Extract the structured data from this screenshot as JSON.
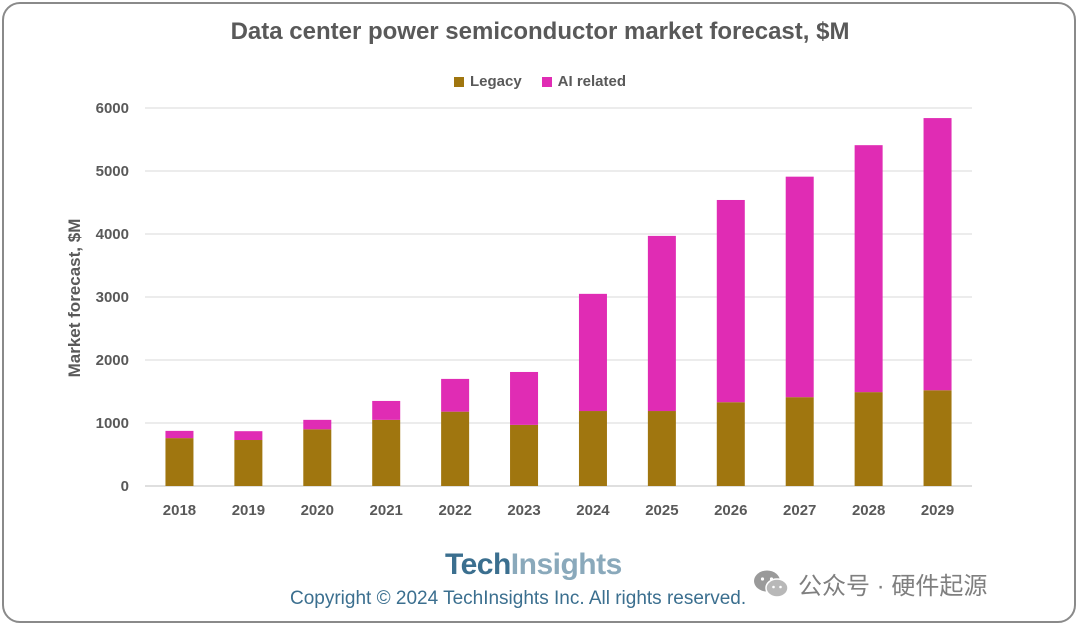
{
  "chart_data": {
    "type": "bar",
    "stacked": true,
    "title": "Data center power semiconductor market forecast, $M",
    "xlabel": "",
    "ylabel": "Market forecast, $M",
    "ylim": [
      0,
      6000
    ],
    "yticks": [
      0,
      1000,
      2000,
      3000,
      4000,
      5000,
      6000
    ],
    "grid": true,
    "legend_position": "top-center",
    "categories": [
      "2018",
      "2019",
      "2020",
      "2021",
      "2022",
      "2023",
      "2024",
      "2025",
      "2026",
      "2027",
      "2028",
      "2029"
    ],
    "series": [
      {
        "name": "Legacy",
        "color": "#a0760f",
        "values": [
          760,
          730,
          900,
          1050,
          1180,
          970,
          1190,
          1190,
          1330,
          1410,
          1490,
          1520
        ]
      },
      {
        "name": "AI related",
        "color": "#e02cb4",
        "values": [
          115,
          140,
          150,
          300,
          520,
          840,
          1860,
          2780,
          3210,
          3500,
          3920,
          4320
        ]
      }
    ]
  },
  "footer": {
    "brand_tech": "Tech",
    "brand_insights": "Insights",
    "copyright": "Copyright © 2024 TechInsights Inc.  All rights reserved."
  },
  "watermark": {
    "text": "公众号 · 硬件起源",
    "icon": "wechat-icon"
  }
}
